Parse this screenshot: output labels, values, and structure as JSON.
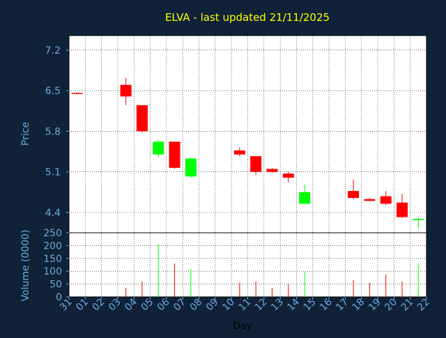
{
  "chart_data": {
    "type": "candlestick",
    "title": "ELVA - last updated 21/11/2025",
    "xlabel": "Day",
    "price_panel": {
      "ylabel": "Price",
      "ylim": [
        4.05,
        7.45
      ],
      "yticks": [
        4.4,
        5.1,
        5.8,
        6.5,
        7.2
      ],
      "ytick_labels": [
        "4.4",
        "5.1",
        "5.8",
        "6.5",
        "7.2"
      ],
      "grid": true
    },
    "volume_panel": {
      "ylabel": "Volume (0000)",
      "ylim": [
        0,
        250
      ],
      "yticks": [
        0,
        50,
        100,
        150,
        200,
        250
      ],
      "ytick_labels": [
        "0",
        "50",
        "100",
        "150",
        "200",
        "250"
      ],
      "grid": true
    },
    "x_tick_labels": [
      "31",
      "01",
      "02",
      "03",
      "04",
      "05",
      "06",
      "07",
      "08",
      "09",
      "10",
      "11",
      "12",
      "13",
      "14",
      "15",
      "16",
      "17",
      "18",
      "19",
      "20",
      "21",
      "22"
    ],
    "candles": [
      {
        "x": "31",
        "open": 6.46,
        "high": 6.47,
        "low": 6.44,
        "close": 6.45,
        "volume": 0
      },
      {
        "x": "03",
        "open": 6.6,
        "high": 6.72,
        "low": 6.25,
        "close": 6.4,
        "volume": 35
      },
      {
        "x": "04",
        "open": 6.25,
        "high": 6.25,
        "low": 5.78,
        "close": 5.8,
        "volume": 60
      },
      {
        "x": "05",
        "open": 5.4,
        "high": 5.65,
        "low": 5.35,
        "close": 5.62,
        "volume": 205
      },
      {
        "x": "06",
        "open": 5.62,
        "high": 5.62,
        "low": 5.15,
        "close": 5.17,
        "volume": 130
      },
      {
        "x": "07",
        "open": 5.02,
        "high": 5.35,
        "low": 5.0,
        "close": 5.33,
        "volume": 110
      },
      {
        "x": "10",
        "open": 5.47,
        "high": 5.52,
        "low": 5.37,
        "close": 5.4,
        "volume": 55
      },
      {
        "x": "11",
        "open": 5.37,
        "high": 5.37,
        "low": 5.05,
        "close": 5.1,
        "volume": 60
      },
      {
        "x": "12",
        "open": 5.15,
        "high": 5.17,
        "low": 5.08,
        "close": 5.1,
        "volume": 35
      },
      {
        "x": "13",
        "open": 5.07,
        "high": 5.1,
        "low": 4.92,
        "close": 5.0,
        "volume": 50
      },
      {
        "x": "14",
        "open": 4.55,
        "high": 4.88,
        "low": 4.55,
        "close": 4.75,
        "volume": 100
      },
      {
        "x": "17",
        "open": 4.77,
        "high": 4.97,
        "low": 4.63,
        "close": 4.65,
        "volume": 65
      },
      {
        "x": "18",
        "open": 4.63,
        "high": 4.65,
        "low": 4.6,
        "close": 4.6,
        "volume": 55
      },
      {
        "x": "19",
        "open": 4.68,
        "high": 4.77,
        "low": 4.53,
        "close": 4.55,
        "volume": 88
      },
      {
        "x": "20",
        "open": 4.57,
        "high": 4.72,
        "low": 4.3,
        "close": 4.32,
        "volume": 60
      },
      {
        "x": "21",
        "open": 4.27,
        "high": 4.3,
        "low": 4.12,
        "close": 4.29,
        "volume": 130
      }
    ],
    "colors": {
      "background": "#0f2238",
      "panel": "#ffffff",
      "up": "#00ff00",
      "down": "#ff0000",
      "title": "#ffff00",
      "axis_text": "#6fa8d8",
      "grid": "#000000"
    }
  }
}
